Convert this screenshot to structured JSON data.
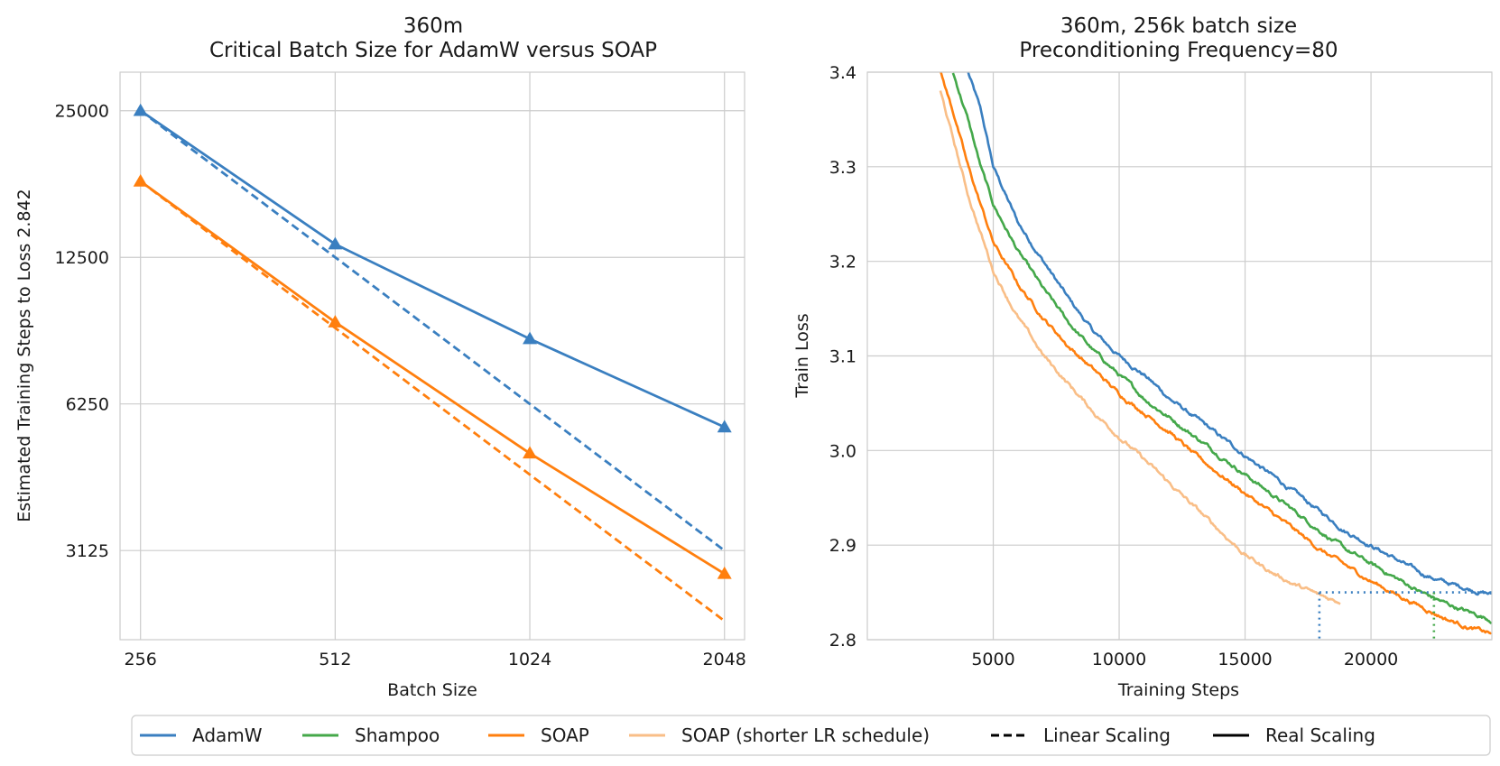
{
  "colors": {
    "adamw": "#3a7fc0",
    "shampoo": "#44a84a",
    "soap": "#ff7f0e",
    "soap_short": "#f9be87",
    "black": "#000000"
  },
  "chart_data": [
    {
      "type": "line",
      "title_line1": "360m",
      "title_line2": "Critical Batch Size for AdamW versus SOAP",
      "xlabel": "Batch Size",
      "ylabel": "Estimated Training Steps to Loss 2.842",
      "xscale": "log2",
      "yscale": "log",
      "xlim": [
        238,
        2200
      ],
      "ylim": [
        2050,
        30000
      ],
      "xticks": [
        256,
        512,
        1024,
        2048
      ],
      "xtick_labels": [
        "256",
        "512",
        "1024",
        "2048"
      ],
      "yticks": [
        3125,
        6250,
        12500,
        25000
      ],
      "ytick_labels": [
        "3125",
        "6250",
        "12500",
        "25000"
      ],
      "grid": true,
      "series": [
        {
          "name": "AdamW Real Scaling",
          "color_key": "adamw",
          "style": "solid",
          "marker": "triangle",
          "x": [
            256,
            512,
            1024,
            2048
          ],
          "y": [
            25000,
            13300,
            8500,
            5600
          ]
        },
        {
          "name": "AdamW Linear Scaling",
          "color_key": "adamw",
          "style": "dashed",
          "marker": "none",
          "x": [
            256,
            512,
            1024,
            2048
          ],
          "y": [
            25000,
            12500,
            6250,
            3125
          ]
        },
        {
          "name": "SOAP Real Scaling",
          "color_key": "soap",
          "style": "solid",
          "marker": "triangle",
          "x": [
            256,
            512,
            1024,
            2048
          ],
          "y": [
            17900,
            9200,
            4950,
            2800
          ]
        },
        {
          "name": "SOAP Linear Scaling",
          "color_key": "soap",
          "style": "dashed",
          "marker": "none",
          "x": [
            256,
            512,
            1024,
            2048
          ],
          "y": [
            17900,
            8950,
            4475,
            2240
          ]
        }
      ]
    },
    {
      "type": "line",
      "title_line1": "360m, 256k batch size",
      "title_line2": "Preconditioning Frequency=80",
      "xlabel": "Training Steps",
      "ylabel": "Train Loss",
      "xlim": [
        0,
        24800
      ],
      "ylim": [
        2.8,
        3.4
      ],
      "xticks": [
        5000,
        10000,
        15000,
        20000
      ],
      "xtick_labels": [
        "5000",
        "10000",
        "15000",
        "20000"
      ],
      "yticks": [
        2.8,
        2.9,
        3.0,
        3.1,
        3.2,
        3.3,
        3.4
      ],
      "ytick_labels": [
        "2.8",
        "2.9",
        "3.0",
        "3.1",
        "3.2",
        "3.3",
        "3.4"
      ],
      "grid": true,
      "threshold_loss": 2.85,
      "markers": [
        {
          "series": "SOAP (shorter LR schedule)",
          "step": 17950,
          "color_key": "adamw"
        },
        {
          "series": "Shampoo",
          "step": 22500,
          "color_key": "shampoo"
        }
      ],
      "series": [
        {
          "name": "AdamW",
          "color_key": "adamw",
          "x": [
            4000,
            4500,
            5000,
            6000,
            7000,
            8000,
            9000,
            10000,
            11000,
            12000,
            13000,
            14000,
            15000,
            16000,
            17000,
            18000,
            19000,
            20000,
            21000,
            22000,
            23000,
            24000,
            24800
          ],
          "y": [
            3.4,
            3.36,
            3.3,
            3.24,
            3.2,
            3.16,
            3.125,
            3.1,
            3.08,
            3.055,
            3.035,
            3.015,
            2.995,
            2.975,
            2.955,
            2.935,
            2.915,
            2.9,
            2.885,
            2.87,
            2.86,
            2.853,
            2.848
          ]
        },
        {
          "name": "Shampoo",
          "color_key": "shampoo",
          "x": [
            3400,
            4000,
            4500,
            5000,
            6000,
            7000,
            8000,
            9000,
            10000,
            11000,
            12000,
            13000,
            14000,
            15000,
            16000,
            17000,
            18000,
            19000,
            20000,
            21000,
            22000,
            23000,
            24000,
            24800
          ],
          "y": [
            3.4,
            3.35,
            3.3,
            3.26,
            3.21,
            3.17,
            3.135,
            3.105,
            3.08,
            3.055,
            3.035,
            3.015,
            2.995,
            2.975,
            2.955,
            2.935,
            2.915,
            2.895,
            2.88,
            2.865,
            2.85,
            2.838,
            2.828,
            2.821
          ]
        },
        {
          "name": "SOAP",
          "color_key": "soap",
          "x": [
            2900,
            3500,
            4000,
            4500,
            5000,
            6000,
            7000,
            8000,
            9000,
            10000,
            11000,
            12000,
            13000,
            14000,
            15000,
            16000,
            17000,
            18000,
            19000,
            20000,
            21000,
            22000,
            23000,
            24000,
            24800
          ],
          "y": [
            3.4,
            3.35,
            3.3,
            3.26,
            3.22,
            3.175,
            3.14,
            3.11,
            3.085,
            3.06,
            3.04,
            3.02,
            2.995,
            2.975,
            2.955,
            2.935,
            2.915,
            2.895,
            2.878,
            2.862,
            2.848,
            2.835,
            2.822,
            2.812,
            2.806
          ]
        },
        {
          "name": "SOAP (shorter LR schedule)",
          "color_key": "soap_short",
          "x": [
            2900,
            3500,
            4000,
            4500,
            5000,
            6000,
            7000,
            8000,
            9000,
            10000,
            11000,
            12000,
            13000,
            14000,
            15000,
            16000,
            17000,
            17500,
            18000,
            18500,
            18800
          ],
          "y": [
            3.38,
            3.32,
            3.27,
            3.23,
            3.19,
            3.14,
            3.1,
            3.07,
            3.04,
            3.015,
            2.99,
            2.965,
            2.94,
            2.915,
            2.89,
            2.872,
            2.858,
            2.852,
            2.846,
            2.842,
            2.84
          ]
        }
      ]
    }
  ],
  "legend": {
    "placement": "bottom",
    "items": [
      {
        "label": "AdamW",
        "color_key": "adamw",
        "style": "solid"
      },
      {
        "label": "Shampoo",
        "color_key": "shampoo",
        "style": "solid"
      },
      {
        "label": "SOAP",
        "color_key": "soap",
        "style": "solid"
      },
      {
        "label": "SOAP (shorter LR schedule)",
        "color_key": "soap_short",
        "style": "solid"
      },
      {
        "label": "Linear Scaling",
        "color_key": "black",
        "style": "dashed"
      },
      {
        "label": "Real Scaling",
        "color_key": "black",
        "style": "solid"
      }
    ]
  }
}
